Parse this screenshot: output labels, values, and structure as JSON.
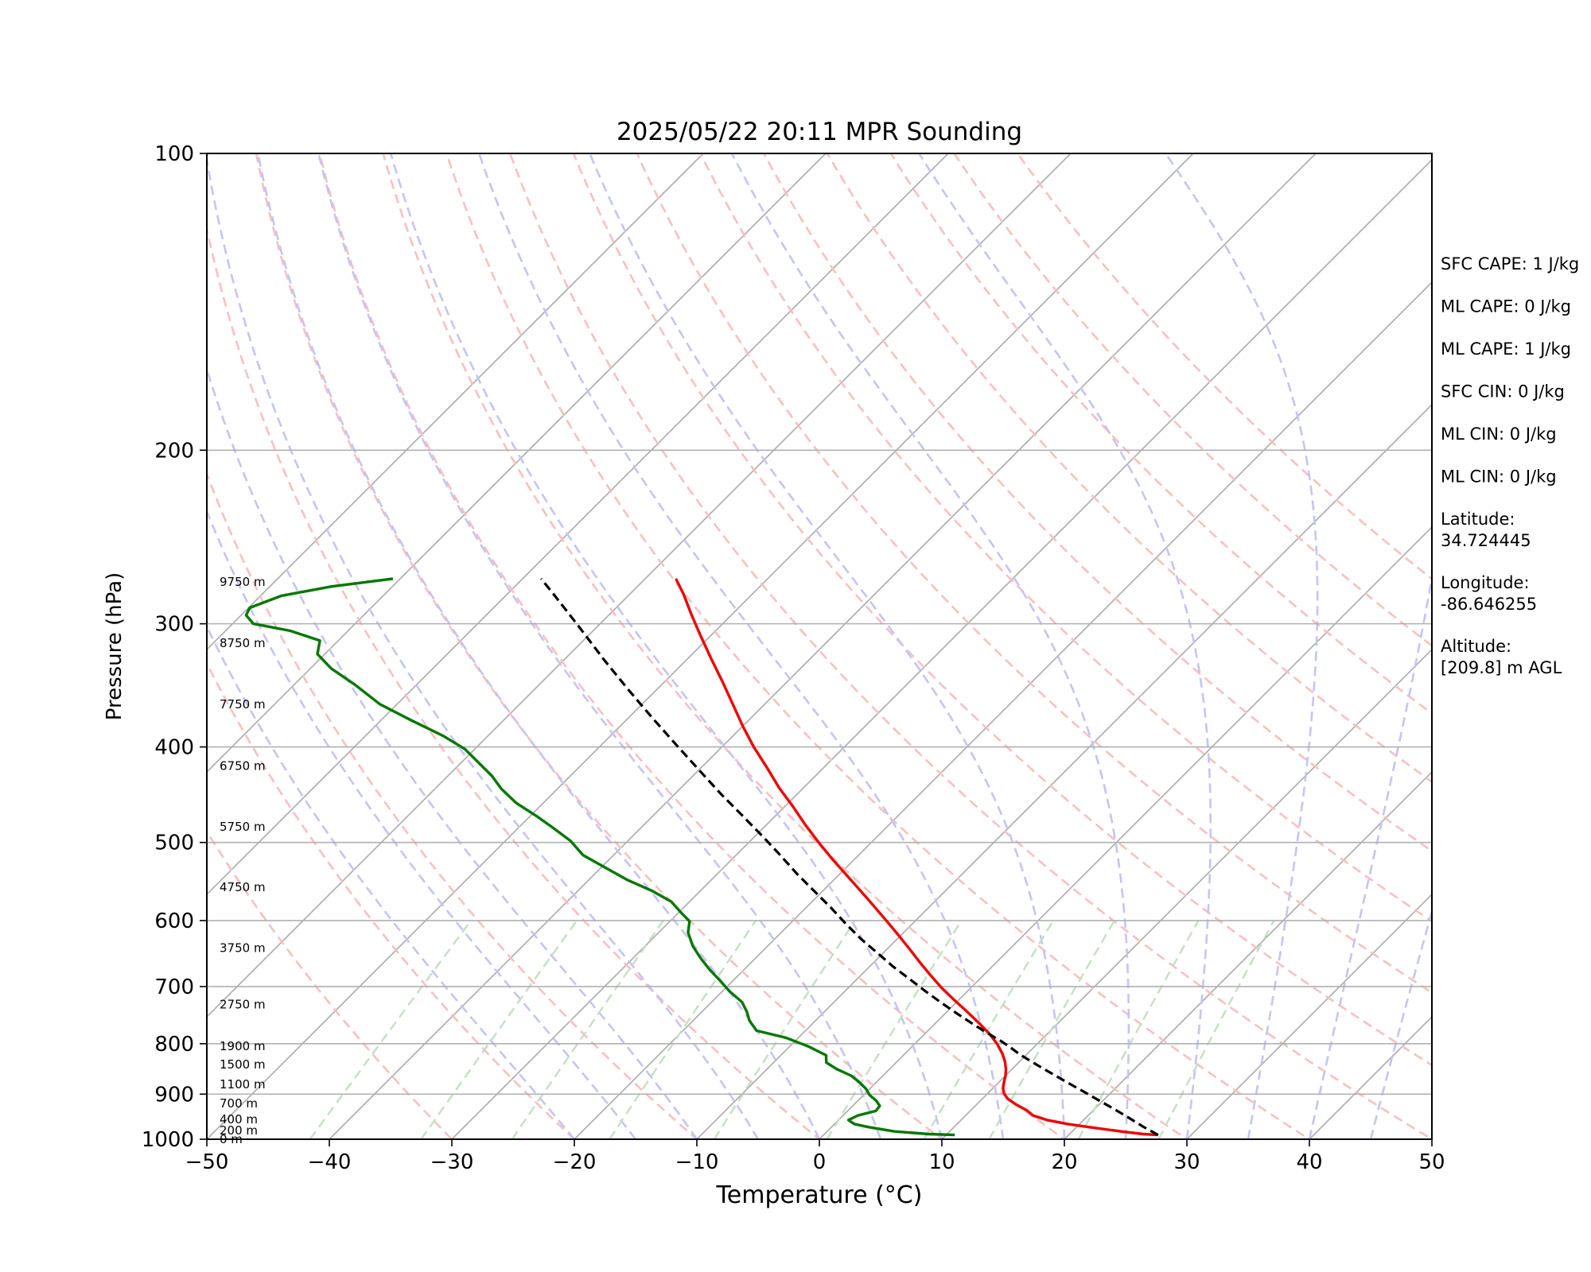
{
  "chart_data": {
    "type": "line",
    "chart_kind": "skew-t log-p",
    "title": "2025/05/22 20:11 MPR Sounding",
    "xlabel": "Temperature (°C)",
    "ylabel": "Pressure (hPa)",
    "xlim": [
      -50,
      50
    ],
    "ylim": [
      1000,
      100
    ],
    "y_scale": "log",
    "x_ticks": [
      -50,
      -40,
      -30,
      -20,
      -10,
      0,
      10,
      20,
      30,
      40,
      50
    ],
    "x_tick_labels": [
      "−50",
      "−40",
      "−30",
      "−20",
      "−10",
      "0",
      "10",
      "20",
      "30",
      "40",
      "50"
    ],
    "y_ticks": [
      1000,
      900,
      800,
      700,
      600,
      500,
      400,
      300,
      200,
      100
    ],
    "y_tick_labels": [
      "1000",
      "900",
      "800",
      "700",
      "600",
      "500",
      "400",
      "300",
      "200",
      "100"
    ],
    "horizontal_grid_pressures": [
      1000,
      900,
      800,
      700,
      600,
      500,
      400,
      300,
      200
    ],
    "isotherms_c": [
      -90,
      -80,
      -70,
      -60,
      -50,
      -40,
      -30,
      -20,
      -10,
      0,
      10,
      20,
      30,
      40,
      50
    ],
    "dry_adiabats_c": [
      -30,
      -20,
      -10,
      0,
      10,
      20,
      30,
      40,
      50,
      60,
      70,
      80,
      90,
      100,
      110,
      120,
      130
    ],
    "moist_adiabats_c": [
      -20,
      -15,
      -10,
      -5,
      0,
      5,
      10,
      15,
      20,
      25,
      30,
      35,
      40,
      45
    ],
    "mixing_ratio_lines_gkg": [
      0.1,
      0.25,
      0.5,
      1,
      2,
      4,
      7,
      10,
      16,
      24
    ],
    "colors": {
      "temperature": "#ee0000",
      "dewpoint": "#007700",
      "parcel": "#000000",
      "isotherm": "#aaaaaa",
      "dry_adiabat": "#f8c0c0",
      "moist_adiabat": "#c4c4f4",
      "mixing_ratio": "#c4dfc4"
    },
    "series": [
      {
        "key": "temperature",
        "points": [
          [
            27.3,
            990
          ],
          [
            26.0,
            988
          ],
          [
            24.0,
            982
          ],
          [
            21.0,
            972
          ],
          [
            19.0,
            965
          ],
          [
            17.0,
            956
          ],
          [
            15.5,
            946
          ],
          [
            14.5,
            934
          ],
          [
            13.2,
            922
          ],
          [
            12.0,
            909
          ],
          [
            11.3,
            898
          ],
          [
            10.8,
            887
          ],
          [
            10.4,
            875
          ],
          [
            10.0,
            862
          ],
          [
            9.5,
            849
          ],
          [
            8.8,
            834
          ],
          [
            7.9,
            818
          ],
          [
            6.7,
            800
          ],
          [
            5.3,
            782
          ],
          [
            3.6,
            763
          ],
          [
            1.7,
            743
          ],
          [
            -0.3,
            723
          ],
          [
            -2.4,
            702
          ],
          [
            -4.3,
            682
          ],
          [
            -6.2,
            662
          ],
          [
            -8.2,
            641
          ],
          [
            -10.3,
            620
          ],
          [
            -12.4,
            600
          ],
          [
            -14.6,
            580
          ],
          [
            -16.9,
            560
          ],
          [
            -19.3,
            540
          ],
          [
            -21.8,
            520
          ],
          [
            -24.3,
            500
          ],
          [
            -26.8,
            480
          ],
          [
            -29.3,
            460
          ],
          [
            -32.0,
            440
          ],
          [
            -34.6,
            420
          ],
          [
            -37.4,
            400
          ],
          [
            -40.0,
            381
          ],
          [
            -42.6,
            362
          ],
          [
            -45.2,
            344
          ],
          [
            -48.0,
            326
          ],
          [
            -50.9,
            308
          ],
          [
            -53.4,
            293
          ],
          [
            -55.6,
            280
          ],
          [
            -57.5,
            270
          ]
        ]
      },
      {
        "key": "dewpoint",
        "points": [
          [
            10.7,
            990
          ],
          [
            8.5,
            988
          ],
          [
            5.5,
            982
          ],
          [
            3.0,
            972
          ],
          [
            1.6,
            965
          ],
          [
            0.8,
            956
          ],
          [
            1.2,
            946
          ],
          [
            2.3,
            936
          ],
          [
            2.2,
            925
          ],
          [
            1.5,
            914
          ],
          [
            0.5,
            902
          ],
          [
            -0.3,
            889
          ],
          [
            -1.5,
            874
          ],
          [
            -2.6,
            862
          ],
          [
            -4.3,
            849
          ],
          [
            -5.7,
            836
          ],
          [
            -6.3,
            822
          ],
          [
            -8.5,
            805
          ],
          [
            -11.0,
            789
          ],
          [
            -14.0,
            776
          ],
          [
            -15.4,
            758
          ],
          [
            -16.3,
            743
          ],
          [
            -17.5,
            726
          ],
          [
            -19.4,
            708
          ],
          [
            -21.1,
            690
          ],
          [
            -22.8,
            673
          ],
          [
            -24.4,
            656
          ],
          [
            -26.1,
            637
          ],
          [
            -27.6,
            617
          ],
          [
            -28.4,
            601
          ],
          [
            -29.8,
            589
          ],
          [
            -31.5,
            574
          ],
          [
            -33.9,
            560
          ],
          [
            -36.8,
            546
          ],
          [
            -39.7,
            530
          ],
          [
            -42.5,
            515
          ],
          [
            -44.7,
            498
          ],
          [
            -47.2,
            483
          ],
          [
            -49.5,
            470
          ],
          [
            -52.2,
            456
          ],
          [
            -54.6,
            441
          ],
          [
            -56.4,
            428
          ],
          [
            -58.4,
            416
          ],
          [
            -60.8,
            402
          ],
          [
            -63.6,
            390
          ],
          [
            -67.5,
            376
          ],
          [
            -71.4,
            362
          ],
          [
            -75.0,
            346
          ],
          [
            -78.3,
            333
          ],
          [
            -80.6,
            322
          ],
          [
            -81.5,
            312
          ],
          [
            -84.7,
            305
          ],
          [
            -88.3,
            300
          ],
          [
            -89.6,
            294
          ],
          [
            -89.9,
            289
          ],
          [
            -88.3,
            281
          ],
          [
            -85.0,
            275
          ],
          [
            -80.6,
            270
          ]
        ]
      },
      {
        "key": "parcel",
        "points": [
          [
            27.3,
            990
          ],
          [
            25.3,
            970
          ],
          [
            23.4,
            950
          ],
          [
            21.4,
            930
          ],
          [
            19.4,
            911
          ],
          [
            17.4,
            892
          ],
          [
            15.4,
            874
          ],
          [
            13.3,
            855
          ],
          [
            11.4,
            838
          ],
          [
            9.4,
            820
          ],
          [
            8.2,
            808
          ],
          [
            6.8,
            795
          ],
          [
            5.0,
            780
          ],
          [
            3.0,
            763
          ],
          [
            0.9,
            745
          ],
          [
            -1.2,
            727
          ],
          [
            -3.4,
            708
          ],
          [
            -5.7,
            688
          ],
          [
            -8.1,
            668
          ],
          [
            -10.5,
            647
          ],
          [
            -13.0,
            626
          ],
          [
            -15.5,
            604
          ],
          [
            -18.0,
            582
          ],
          [
            -20.7,
            560
          ],
          [
            -23.5,
            538
          ],
          [
            -26.4,
            515
          ],
          [
            -29.5,
            492
          ],
          [
            -32.8,
            469
          ],
          [
            -36.3,
            446
          ],
          [
            -40.0,
            422
          ],
          [
            -43.9,
            398
          ],
          [
            -48.0,
            374
          ],
          [
            -52.3,
            350
          ],
          [
            -56.8,
            326
          ],
          [
            -61.5,
            302
          ],
          [
            -66.2,
            280
          ],
          [
            -68.5,
            270
          ]
        ]
      }
    ],
    "height_labels": [
      {
        "text": "0 m",
        "p": 1000
      },
      {
        "text": "200 m",
        "p": 980
      },
      {
        "text": "400 m",
        "p": 955
      },
      {
        "text": "700 m",
        "p": 920
      },
      {
        "text": "1100 m",
        "p": 880
      },
      {
        "text": "1500 m",
        "p": 840
      },
      {
        "text": "1900 m",
        "p": 805
      },
      {
        "text": "2750 m",
        "p": 730
      },
      {
        "text": "3750 m",
        "p": 640
      },
      {
        "text": "4750 m",
        "p": 555
      },
      {
        "text": "5750 m",
        "p": 482
      },
      {
        "text": "6750 m",
        "p": 418
      },
      {
        "text": "7750 m",
        "p": 362
      },
      {
        "text": "8750 m",
        "p": 314
      },
      {
        "text": "9750 m",
        "p": 272
      }
    ]
  },
  "info_panel": [
    "SFC CAPE: 1 J/kg",
    "ML CAPE: 0 J/kg",
    "ML CAPE: 1 J/kg",
    "SFC CIN: 0 J/kg",
    "ML CIN: 0 J/kg",
    "ML CIN: 0 J/kg",
    "Latitude:\n34.724445",
    "Longitude:\n-86.646255",
    "Altitude:\n[209.8] m AGL"
  ]
}
